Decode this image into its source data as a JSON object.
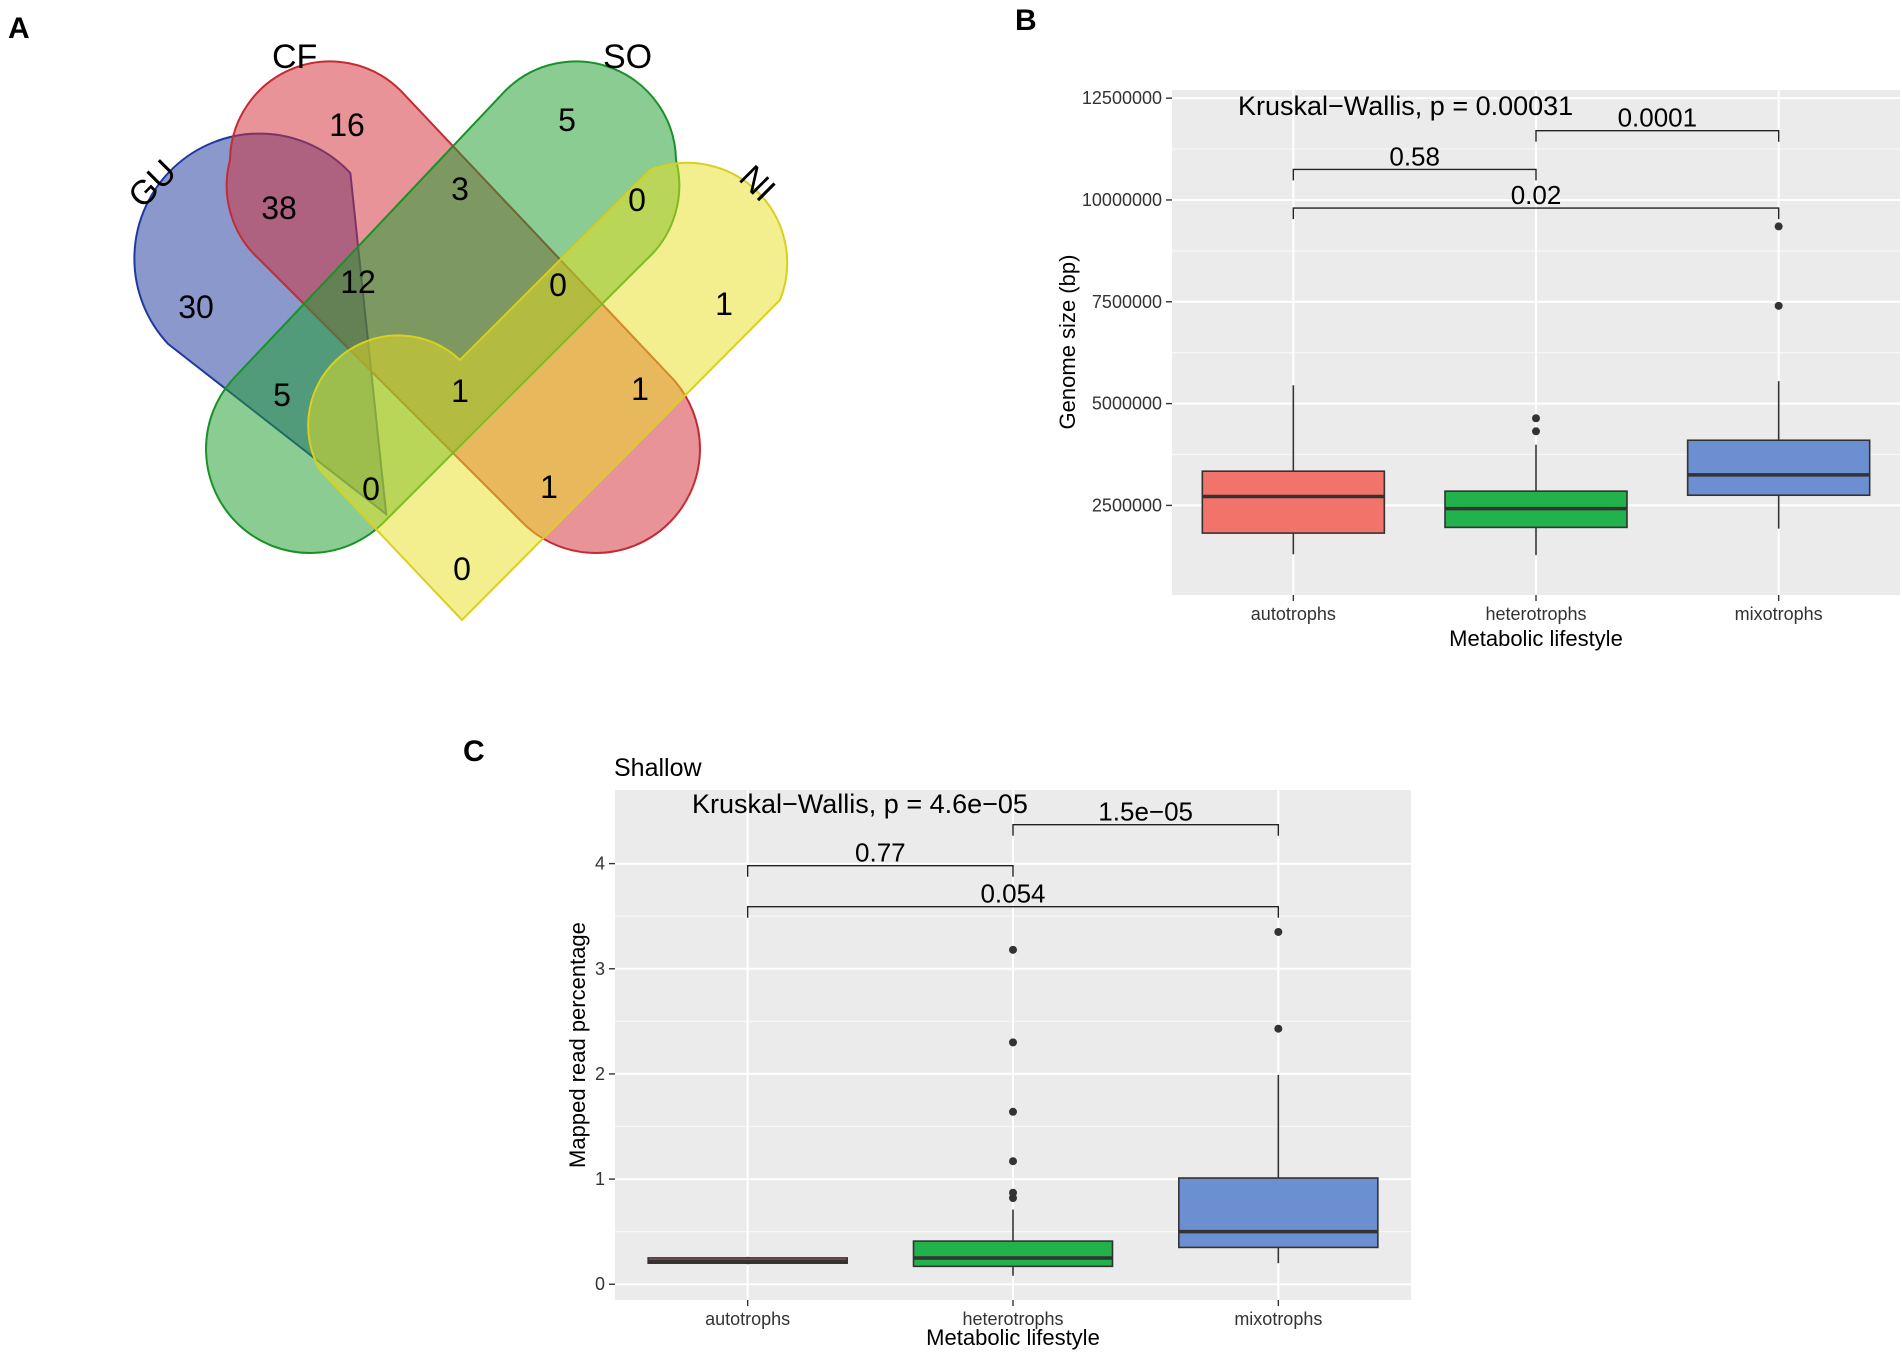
{
  "panels": {
    "a": "A",
    "b": "B",
    "c": "C"
  },
  "venn": {
    "sets": [
      {
        "name": "GU",
        "color": "#1f3a9e"
      },
      {
        "name": "CF",
        "color": "#d1303a"
      },
      {
        "name": "SO",
        "color": "#1e9e2e"
      },
      {
        "name": "NI",
        "color": "#e8e020"
      }
    ],
    "counts": {
      "gu_only": "30",
      "cf_only": "16",
      "so_only": "5",
      "ni_only": "1",
      "gu_cf": "38",
      "cf_so": "3",
      "so_ni": "0",
      "gu_ni": "0",
      "gu_so": "5",
      "cf_ni": "1",
      "gu_cf_so": "12",
      "cf_so_ni": "0",
      "gu_cf_ni": "1",
      "gu_so_ni": "0",
      "all": "1"
    }
  },
  "chart_data": [
    {
      "type": "box",
      "title": "",
      "annotation": "Kruskal−Wallis, p = 0.00031",
      "xlabel": "Metabolic lifestyle",
      "ylabel": "Genome size (bp)",
      "categories": [
        "autotrophs",
        "heterotrophs",
        "mixotrophs"
      ],
      "colors": [
        "#f1736a",
        "#22b24c",
        "#6b8fd1"
      ],
      "ylim": [
        300000,
        12700000
      ],
      "yticks": [
        2500000,
        5000000,
        7500000,
        10000000,
        12500000
      ],
      "ytick_labels": [
        "2500000",
        "5000000",
        "7500000",
        "10000000",
        "12500000"
      ],
      "boxes": [
        {
          "min": 1300000,
          "q1": 1820000,
          "median": 2720000,
          "q3": 3340000,
          "max": 5450000,
          "outliers": []
        },
        {
          "min": 1280000,
          "q1": 1960000,
          "median": 2420000,
          "q3": 2850000,
          "max": 3990000,
          "outliers": [
            4320000,
            4640000
          ]
        },
        {
          "min": 1930000,
          "q1": 2750000,
          "median": 3250000,
          "q3": 4100000,
          "max": 5550000,
          "outliers": [
            7400000,
            9350000
          ]
        }
      ],
      "comparisons": [
        {
          "from": 0,
          "to": 1,
          "p": "0.58",
          "y": 10750000
        },
        {
          "from": 0,
          "to": 2,
          "p": "0.02",
          "y": 9800000
        },
        {
          "from": 1,
          "to": 2,
          "p": "0.0001",
          "y": 11700000
        }
      ]
    },
    {
      "type": "box",
      "title": "Shallow",
      "annotation": "Kruskal−Wallis, p = 4.6e−05",
      "xlabel": "Metabolic lifestyle",
      "ylabel": "Mapped read percentage",
      "categories": [
        "autotrophs",
        "heterotrophs",
        "mixotrophs"
      ],
      "colors": [
        "#f1736a",
        "#22b24c",
        "#6b8fd1"
      ],
      "ylim": [
        -0.15,
        4.7
      ],
      "yticks": [
        0,
        1,
        2,
        3,
        4
      ],
      "ytick_labels": [
        "0",
        "1",
        "2",
        "3",
        "4"
      ],
      "boxes": [
        {
          "min": 0.19,
          "q1": 0.2,
          "median": 0.22,
          "q3": 0.25,
          "max": 0.26,
          "outliers": []
        },
        {
          "min": 0.08,
          "q1": 0.17,
          "median": 0.25,
          "q3": 0.41,
          "max": 0.71,
          "outliers": [
            0.82,
            0.87,
            1.17,
            1.64,
            2.3,
            3.18
          ]
        },
        {
          "min": 0.2,
          "q1": 0.35,
          "median": 0.5,
          "q3": 1.01,
          "max": 1.99,
          "outliers": [
            2.43,
            3.35
          ]
        }
      ],
      "comparisons": [
        {
          "from": 0,
          "to": 1,
          "p": "0.77",
          "y": 3.98
        },
        {
          "from": 0,
          "to": 2,
          "p": "0.054",
          "y": 3.59
        },
        {
          "from": 1,
          "to": 2,
          "p": "1.5e−05",
          "y": 4.37
        }
      ]
    }
  ]
}
